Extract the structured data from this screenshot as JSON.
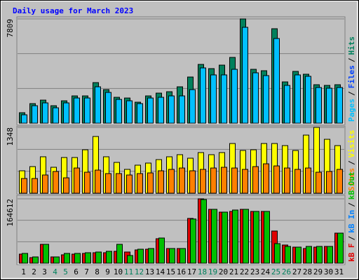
{
  "title": "Daily usage for March 2023",
  "legend_separator": "/",
  "chart_data": [
    {
      "type": "bar",
      "ylim": [
        0,
        7809
      ],
      "yticks": [
        7809
      ],
      "series": [
        {
          "name": "Hits",
          "color": "#00805c",
          "values": [
            786,
            1467,
            1729,
            1310,
            1677,
            2044,
            2044,
            3039,
            2515,
            1939,
            1886,
            1572,
            2044,
            2253,
            2358,
            2725,
            3458,
            4402,
            4087,
            4349,
            4926,
            7809,
            4035,
            3930,
            7074,
            3092,
            3878,
            3668,
            2882,
            2830,
            2882
          ]
        },
        {
          "name": "Files",
          "color": "#0040ff",
          "values": [
            629,
            1310,
            1520,
            1153,
            1520,
            1886,
            1886,
            2725,
            2306,
            1782,
            1677,
            1467,
            1886,
            1939,
            2044,
            2044,
            2515,
            4140,
            3616,
            3616,
            4035,
            7179,
            3773,
            3563,
            6340,
            2830,
            3616,
            3511,
            2672,
            2620,
            2672
          ]
        },
        {
          "name": "Pages",
          "color": "#00c0ff",
          "values": [
            629,
            1310,
            1520,
            1153,
            1520,
            1886,
            1886,
            2725,
            2306,
            1782,
            1677,
            1467,
            1886,
            1939,
            2044,
            2044,
            2515,
            4140,
            3616,
            3616,
            4035,
            7179,
            3773,
            3563,
            6340,
            2830,
            3616,
            3511,
            2672,
            2620,
            2672
          ]
        }
      ]
    },
    {
      "type": "bar",
      "ylim": [
        0,
        1348
      ],
      "yticks": [
        1348
      ],
      "series": [
        {
          "name": "Visits",
          "color": "#ffff00",
          "values": [
            459,
            545,
            746,
            531,
            731,
            731,
            889,
            1162,
            746,
            631,
            488,
            574,
            617,
            688,
            746,
            789,
            717,
            832,
            789,
            832,
            1018,
            875,
            889,
            1018,
            1018,
            975,
            875,
            1190,
            1348,
            1104,
            975
          ]
        },
        {
          "name": "Sites",
          "color": "#ff8000",
          "values": [
            301,
            301,
            373,
            445,
            315,
            516,
            430,
            473,
            402,
            402,
            373,
            402,
            416,
            459,
            488,
            516,
            459,
            488,
            516,
            531,
            516,
            488,
            545,
            602,
            559,
            516,
            488,
            516,
            430,
            445,
            488
          ]
        }
      ]
    },
    {
      "type": "bar",
      "ylim": [
        0,
        164612
      ],
      "yticks": [
        164612
      ],
      "categories": [
        "1",
        "2",
        "3",
        "4",
        "5",
        "6",
        "7",
        "8",
        "9",
        "10",
        "11",
        "12",
        "13",
        "14",
        "15",
        "16",
        "17",
        "18",
        "19",
        "20",
        "21",
        "22",
        "23",
        "24",
        "25",
        "26",
        "27",
        "28",
        "29",
        "30",
        "31"
      ],
      "label_colors": [
        "#000000",
        "#000000",
        "#000000",
        "#00805c",
        "#00805c",
        "#000000",
        "#000000",
        "#000000",
        "#000000",
        "#000000",
        "#00805c",
        "#00805c",
        "#000000",
        "#000000",
        "#000000",
        "#000000",
        "#000000",
        "#00805c",
        "#00805c",
        "#000000",
        "#000000",
        "#000000",
        "#000000",
        "#000000",
        "#00805c",
        "#00805c",
        "#000000",
        "#000000",
        "#000000",
        "#000000",
        "#000000"
      ],
      "series": [
        {
          "name": "kB F",
          "color": "#e00000",
          "values": [
            23257,
            14312,
            48303,
            16101,
            21468,
            23257,
            25046,
            26835,
            26835,
            30413,
            28624,
            33991,
            35780,
            62615,
            37569,
            37569,
            114496,
            164612,
            137753,
            130597,
            132386,
            137753,
            132386,
            132386,
            82294,
            46514,
            41147,
            37569,
            41147,
            42936,
            76927
          ]
        },
        {
          "name": "kB In",
          "color": "#0080ff",
          "values": [
            0,
            0,
            0,
            0,
            0,
            0,
            0,
            0,
            0,
            0,
            0,
            0,
            0,
            0,
            0,
            0,
            0,
            0,
            0,
            0,
            0,
            0,
            0,
            0,
            0,
            0,
            0,
            0,
            0,
            0,
            0
          ]
        },
        {
          "name": "kB Out",
          "color": "#00c000",
          "values": [
            25046,
            16101,
            48303,
            16101,
            25046,
            25046,
            26835,
            28624,
            30413,
            48303,
            19679,
            35780,
            37569,
            64404,
            37569,
            37569,
            113000,
            162799,
            137753,
            130597,
            135964,
            137753,
            132386,
            132386,
            50092,
            42936,
            41147,
            42936,
            42936,
            42936,
            76927
          ]
        }
      ]
    }
  ]
}
